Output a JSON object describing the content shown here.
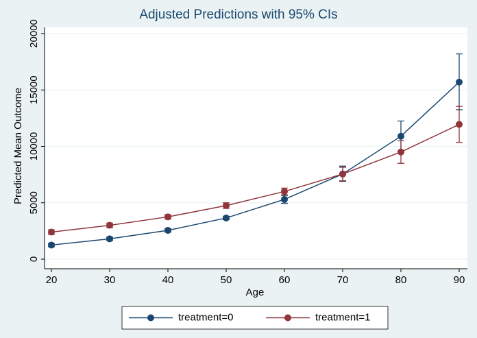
{
  "chart_data": {
    "type": "line",
    "title": "Adjusted Predictions with 95% CIs",
    "x_label": "Age",
    "y_label": "Predicted Mean Outcome",
    "x": [
      20,
      30,
      40,
      50,
      60,
      70,
      80,
      90
    ],
    "series": [
      {
        "name": "treatment=0",
        "color": "#1a476f",
        "values": [
          1250,
          1800,
          2550,
          3650,
          5300,
          7550,
          10900,
          15700
        ],
        "lower": [
          1100,
          1650,
          2400,
          3500,
          4950,
          6900,
          9550,
          13250
        ],
        "upper": [
          1400,
          1950,
          2700,
          3800,
          5650,
          8250,
          12250,
          18200
        ]
      },
      {
        "name": "treatment=1",
        "color": "#90353b",
        "values": [
          2400,
          3000,
          3750,
          4750,
          6000,
          7550,
          9500,
          11950
        ],
        "lower": [
          2200,
          2800,
          3550,
          4500,
          5700,
          6950,
          8500,
          10350
        ],
        "upper": [
          2600,
          3200,
          3950,
          5000,
          6300,
          8150,
          10500,
          13550
        ]
      }
    ],
    "xlim": [
      20,
      90
    ],
    "xticks": [
      20,
      30,
      40,
      50,
      60,
      70,
      80,
      90
    ],
    "ylim": [
      0,
      20000
    ],
    "yticks": [
      0,
      5000,
      10000,
      15000,
      20000
    ],
    "grid": true,
    "legend": "bottom"
  }
}
